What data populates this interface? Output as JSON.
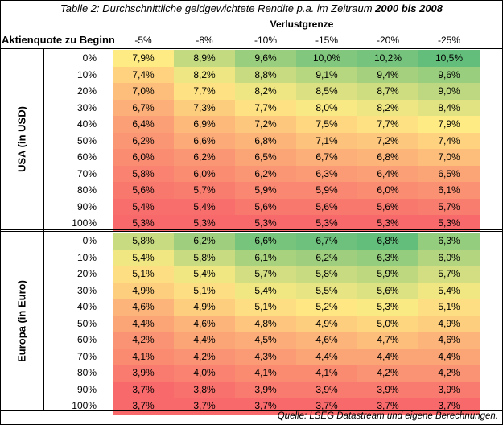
{
  "title": {
    "text": "Tablle 2: Durchschnittliche geldgewichtete Rendite p.a. im Zeitraum",
    "period": "2000 bis 2008"
  },
  "column_group_label": "Verlustgrenze",
  "row_header_label": "Aktienquote zu Beginn",
  "columns": [
    "-5%",
    "-8%",
    "-10%",
    "-15%",
    "-20%",
    "-25%"
  ],
  "sections": [
    {
      "label": "USA (in USD)",
      "rows": [
        {
          "quote": "0%",
          "values": [
            "7,9%",
            "8,9%",
            "9,6%",
            "10,0%",
            "10,2%",
            "10,5%"
          ]
        },
        {
          "quote": "10%",
          "values": [
            "7,4%",
            "8,2%",
            "8,8%",
            "9,1%",
            "9,4%",
            "9,6%"
          ]
        },
        {
          "quote": "20%",
          "values": [
            "7,0%",
            "7,7%",
            "8,2%",
            "8,5%",
            "8,7%",
            "9,0%"
          ]
        },
        {
          "quote": "30%",
          "values": [
            "6,7%",
            "7,3%",
            "7,7%",
            "8,0%",
            "8,2%",
            "8,4%"
          ]
        },
        {
          "quote": "40%",
          "values": [
            "6,4%",
            "6,9%",
            "7,2%",
            "7,5%",
            "7,7%",
            "7,9%"
          ]
        },
        {
          "quote": "50%",
          "values": [
            "6,2%",
            "6,6%",
            "6,8%",
            "7,1%",
            "7,2%",
            "7,4%"
          ]
        },
        {
          "quote": "60%",
          "values": [
            "6,0%",
            "6,2%",
            "6,5%",
            "6,7%",
            "6,8%",
            "7,0%"
          ]
        },
        {
          "quote": "70%",
          "values": [
            "5,8%",
            "6,0%",
            "6,2%",
            "6,3%",
            "6,4%",
            "6,5%"
          ]
        },
        {
          "quote": "80%",
          "values": [
            "5,6%",
            "5,7%",
            "5,9%",
            "5,9%",
            "6,0%",
            "6,1%"
          ]
        },
        {
          "quote": "90%",
          "values": [
            "5,4%",
            "5,4%",
            "5,6%",
            "5,6%",
            "5,6%",
            "5,7%"
          ]
        },
        {
          "quote": "100%",
          "values": [
            "5,3%",
            "5,3%",
            "5,3%",
            "5,3%",
            "5,3%",
            "5,3%"
          ]
        }
      ]
    },
    {
      "label": "Europa (in Euro)",
      "rows": [
        {
          "quote": "0%",
          "values": [
            "5,8%",
            "6,2%",
            "6,6%",
            "6,7%",
            "6,8%",
            "6,3%"
          ]
        },
        {
          "quote": "10%",
          "values": [
            "5,4%",
            "5,8%",
            "6,1%",
            "6,2%",
            "6,3%",
            "6,0%"
          ]
        },
        {
          "quote": "20%",
          "values": [
            "5,1%",
            "5,4%",
            "5,7%",
            "5,8%",
            "5,9%",
            "5,7%"
          ]
        },
        {
          "quote": "30%",
          "values": [
            "4,9%",
            "5,1%",
            "5,4%",
            "5,5%",
            "5,6%",
            "5,4%"
          ]
        },
        {
          "quote": "40%",
          "values": [
            "4,6%",
            "4,9%",
            "5,1%",
            "5,2%",
            "5,3%",
            "5,1%"
          ]
        },
        {
          "quote": "50%",
          "values": [
            "4,4%",
            "4,6%",
            "4,8%",
            "4,9%",
            "5,0%",
            "4,9%"
          ]
        },
        {
          "quote": "60%",
          "values": [
            "4,2%",
            "4,4%",
            "4,5%",
            "4,6%",
            "4,7%",
            "4,6%"
          ]
        },
        {
          "quote": "70%",
          "values": [
            "4,1%",
            "4,2%",
            "4,3%",
            "4,4%",
            "4,4%",
            "4,4%"
          ]
        },
        {
          "quote": "80%",
          "values": [
            "3,9%",
            "4,0%",
            "4,1%",
            "4,1%",
            "4,2%",
            "4,2%"
          ]
        },
        {
          "quote": "90%",
          "values": [
            "3,7%",
            "3,8%",
            "3,9%",
            "3,9%",
            "3,9%",
            "3,9%"
          ]
        },
        {
          "quote": "100%",
          "values": [
            "3,7%",
            "3,7%",
            "3,7%",
            "3,7%",
            "3,7%",
            "3,7%"
          ]
        }
      ]
    }
  ],
  "color_scale": {
    "low": "#f8696b",
    "mid": "#ffeb84",
    "high": "#63be7b"
  },
  "source": "Quelle: LSEG Datastream und eigene Berechnungen."
}
